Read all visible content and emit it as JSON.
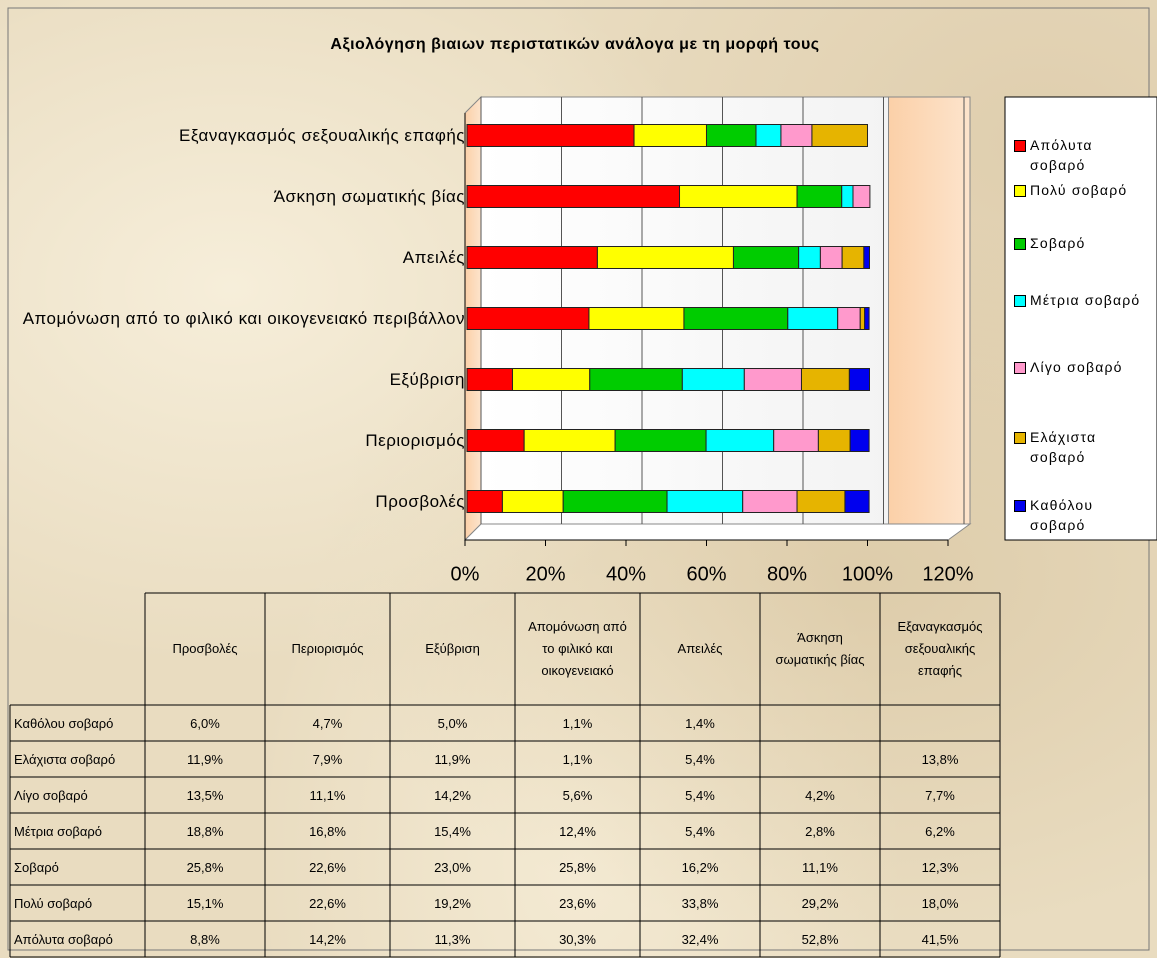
{
  "chart_data": {
    "type": "bar",
    "orientation": "horizontal",
    "stacked": true,
    "title": "Αξιολόγηση βιαιων περιστατικών ανάλογα με τη μορφή τους",
    "categories": [
      "Προσβολές",
      "Περιορισμός",
      "Εξύβριση",
      "Απομόνωση από το φιλικό και οικογενειακό περιβάλλον",
      "Απειλές",
      "Άσκηση σωματικής βίας",
      "Εξαναγκασμός σεξουαλικής επαφής"
    ],
    "table_headers": [
      "Προσβολές",
      "Περιορισμός",
      "Εξύβριση",
      "Απομόνωση από το φιλικό και οικογενειακό",
      "Απειλές",
      "Άσκηση σωματικής βίας",
      "Εξαναγκασμός σεξουαλικής επαφής"
    ],
    "series": [
      {
        "name": "Απόλυτα σοβαρό",
        "color": "#ff0000",
        "values": [
          8.8,
          14.2,
          11.3,
          30.3,
          32.4,
          52.8,
          41.5
        ],
        "value_labels": [
          "8,8%",
          "14,2%",
          "11,3%",
          "30,3%",
          "32,4%",
          "52,8%",
          "41,5%"
        ]
      },
      {
        "name": "Πολύ σοβαρό",
        "color": "#ffff00",
        "values": [
          15.1,
          22.6,
          19.2,
          23.6,
          33.8,
          29.2,
          18.0
        ],
        "value_labels": [
          "15,1%",
          "22,6%",
          "19,2%",
          "23,6%",
          "33,8%",
          "29,2%",
          "18,0%"
        ]
      },
      {
        "name": "Σοβαρό",
        "color": "#00cc00",
        "values": [
          25.8,
          22.6,
          23.0,
          25.8,
          16.2,
          11.1,
          12.3
        ],
        "value_labels": [
          "25,8%",
          "22,6%",
          "23,0%",
          "25,8%",
          "16,2%",
          "11,1%",
          "12,3%"
        ]
      },
      {
        "name": "Μέτρια σοβαρό",
        "color": "#00ffff",
        "values": [
          18.8,
          16.8,
          15.4,
          12.4,
          5.4,
          2.8,
          6.2
        ],
        "value_labels": [
          "18,8%",
          "16,8%",
          "15,4%",
          "12,4%",
          "5,4%",
          "2,8%",
          "6,2%"
        ]
      },
      {
        "name": "Λίγο σοβαρό",
        "color": "#ff99cc",
        "values": [
          13.5,
          11.1,
          14.2,
          5.6,
          5.4,
          4.2,
          7.7
        ],
        "value_labels": [
          "13,5%",
          "11,1%",
          "14,2%",
          "5,6%",
          "5,4%",
          "4,2%",
          "7,7%"
        ]
      },
      {
        "name": "Ελάχιστα σοβαρό",
        "color": "#e6b400",
        "values": [
          11.9,
          7.9,
          11.9,
          1.1,
          5.4,
          null,
          13.8
        ],
        "value_labels": [
          "11,9%",
          "7,9%",
          "11,9%",
          "1,1%",
          "5,4%",
          null,
          "13,8%"
        ]
      },
      {
        "name": "Καθόλου σοβαρό",
        "color": "#0000ee",
        "values": [
          6.0,
          4.7,
          5.0,
          1.1,
          1.4,
          null,
          null
        ],
        "value_labels": [
          "6,0%",
          "4,7%",
          "5,0%",
          "1,1%",
          "1,4%",
          null,
          null
        ]
      }
    ],
    "xlim": [
      0,
      120
    ],
    "xticks": [
      {
        "value": 0,
        "label": "0%"
      },
      {
        "value": 20,
        "label": "20%"
      },
      {
        "value": 40,
        "label": "40%"
      },
      {
        "value": 60,
        "label": "60%"
      },
      {
        "value": 80,
        "label": "80%"
      },
      {
        "value": 100,
        "label": "100%"
      },
      {
        "value": 120,
        "label": "120%"
      }
    ],
    "grid": true,
    "legend": "right"
  }
}
